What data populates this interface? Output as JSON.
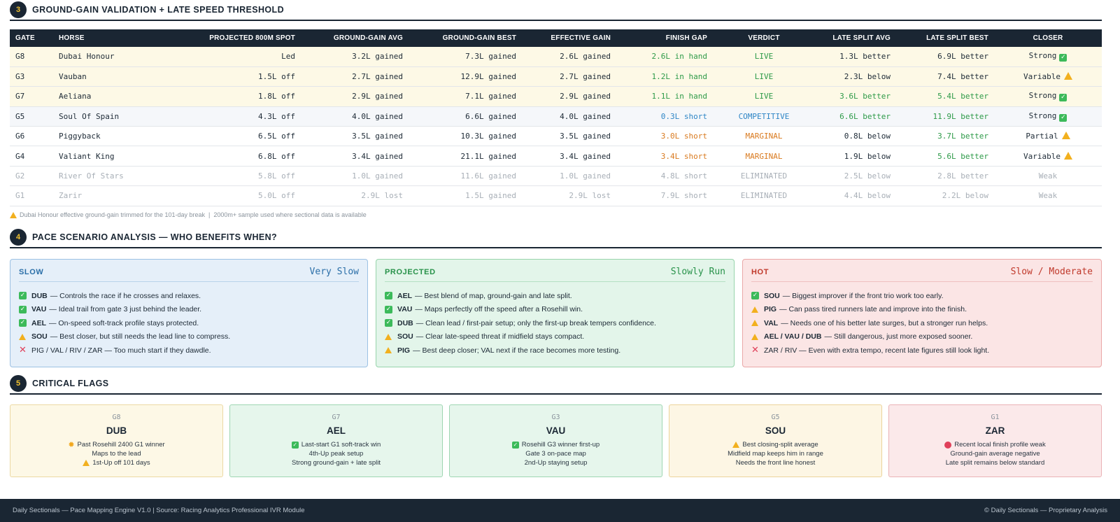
{
  "section3": {
    "number": "3",
    "title": "GROUND-GAIN VALIDATION + LATE SPEED THRESHOLD",
    "columns": [
      "GATE",
      "HORSE",
      "PROJECTED 800M SPOT",
      "GROUND-GAIN AVG",
      "GROUND-GAIN BEST",
      "EFFECTIVE GAIN",
      "FINISH GAP",
      "VERDICT",
      "LATE SPLIT AVG",
      "LATE SPLIT BEST",
      "CLOSER"
    ],
    "rows": [
      {
        "gate": "G8",
        "horse": "Dubai Honour",
        "spot": "Led",
        "gg_avg": "3.2L gained",
        "gg_best": "7.3L gained",
        "eff": "2.6L gained",
        "gap": "2.6L in hand",
        "verdict": "LIVE",
        "ls_avg": "1.3L better",
        "ls_best": "6.9L better",
        "closer": "Strong",
        "closer_icon": "check-icon"
      },
      {
        "gate": "G3",
        "horse": "Vauban",
        "spot": "1.5L off",
        "gg_avg": "2.7L gained",
        "gg_best": "12.9L gained",
        "eff": "2.7L gained",
        "gap": "1.2L in hand",
        "verdict": "LIVE",
        "ls_avg": "2.3L below",
        "ls_best": "7.4L better",
        "closer": "Variable",
        "closer_icon": "warning-icon"
      },
      {
        "gate": "G7",
        "horse": "Aeliana",
        "spot": "1.8L off",
        "gg_avg": "2.9L gained",
        "gg_best": "7.1L gained",
        "eff": "2.9L gained",
        "gap": "1.1L in hand",
        "verdict": "LIVE",
        "ls_avg": "3.6L better",
        "ls_best": "5.4L better",
        "closer": "Strong",
        "closer_icon": "check-icon"
      },
      {
        "gate": "G5",
        "horse": "Soul Of Spain",
        "spot": "4.3L off",
        "gg_avg": "4.0L gained",
        "gg_best": "6.6L gained",
        "eff": "4.0L gained",
        "gap": "0.3L short",
        "verdict": "COMPETITIVE",
        "ls_avg": "6.6L better",
        "ls_best": "11.9L better",
        "closer": "Strong",
        "closer_icon": "check-icon"
      },
      {
        "gate": "G6",
        "horse": "Piggyback",
        "spot": "6.5L off",
        "gg_avg": "3.5L gained",
        "gg_best": "10.3L gained",
        "eff": "3.5L gained",
        "gap": "3.0L short",
        "verdict": "MARGINAL",
        "ls_avg": "0.8L below",
        "ls_best": "3.7L better",
        "closer": "Partial",
        "closer_icon": "warning-icon"
      },
      {
        "gate": "G4",
        "horse": "Valiant King",
        "spot": "6.8L off",
        "gg_avg": "3.4L gained",
        "gg_best": "21.1L gained",
        "eff": "3.4L gained",
        "gap": "3.4L short",
        "verdict": "MARGINAL",
        "ls_avg": "1.9L below",
        "ls_best": "5.6L better",
        "closer": "Variable",
        "closer_icon": "warning-icon"
      },
      {
        "gate": "G2",
        "horse": "River Of Stars",
        "spot": "5.8L off",
        "gg_avg": "1.0L gained",
        "gg_best": "11.6L gained",
        "eff": "1.0L gained",
        "gap": "4.8L short",
        "verdict": "ELIMINATED",
        "ls_avg": "2.5L below",
        "ls_best": "2.8L better",
        "closer": "Weak",
        "closer_icon": ""
      },
      {
        "gate": "G1",
        "horse": "Zarir",
        "spot": "5.0L off",
        "gg_avg": "2.9L lost",
        "gg_best": "1.5L gained",
        "eff": "2.9L lost",
        "gap": "7.9L short",
        "verdict": "ELIMINATED",
        "ls_avg": "4.4L below",
        "ls_best": "2.2L below",
        "closer": "Weak",
        "closer_icon": ""
      }
    ],
    "footnote": "Dubai Honour effective ground-gain trimmed for the 101-day break  |  2000m+ sample used where sectional data is available"
  },
  "section4": {
    "number": "4",
    "title": "PACE SCENARIO ANALYSIS — WHO BENEFITS WHEN?",
    "cards": [
      {
        "label": "SLOW",
        "value": "Very Slow",
        "items": [
          {
            "icon": "check",
            "bold": "DUB",
            "text": "— Controls the race if he crosses and relaxes."
          },
          {
            "icon": "check",
            "bold": "VAU",
            "text": "— Ideal trail from gate 3 just behind the leader."
          },
          {
            "icon": "check",
            "bold": "AEL",
            "text": "— On-speed soft-track profile stays protected."
          },
          {
            "icon": "warn",
            "bold": "SOU",
            "text": "— Best closer, but still needs the lead line to compress."
          },
          {
            "icon": "cross",
            "bold": "",
            "text": "PIG / VAL / RIV / ZAR — Too much start if they dawdle."
          }
        ]
      },
      {
        "label": "PROJECTED",
        "value": "Slowly Run",
        "items": [
          {
            "icon": "check",
            "bold": "AEL",
            "text": "— Best blend of map, ground-gain and late split."
          },
          {
            "icon": "check",
            "bold": "VAU",
            "text": "— Maps perfectly off the speed after a Rosehill win."
          },
          {
            "icon": "check",
            "bold": "DUB",
            "text": "— Clean lead / first-pair setup; only the first-up break tempers confidence."
          },
          {
            "icon": "warn",
            "bold": "SOU",
            "text": "— Clear late-speed threat if midfield stays compact."
          },
          {
            "icon": "warn",
            "bold": "PIG",
            "text": "— Best deep closer; VAL next if the race becomes more testing."
          }
        ]
      },
      {
        "label": "HOT",
        "value": "Slow / Moderate",
        "items": [
          {
            "icon": "check",
            "bold": "SOU",
            "text": "— Biggest improver if the front trio work too early."
          },
          {
            "icon": "warn",
            "bold": "PIG",
            "text": "— Can pass tired runners late and improve into the finish."
          },
          {
            "icon": "warn",
            "bold": "VAL",
            "text": "— Needs one of his better late surges, but a stronger run helps."
          },
          {
            "icon": "warn",
            "bold": "AEL / VAU / DUB",
            "text": "— Still dangerous, just more exposed sooner."
          },
          {
            "icon": "cross",
            "bold": "",
            "text": "ZAR / RIV — Even with extra tempo, recent late figures still look light."
          }
        ]
      }
    ]
  },
  "section5": {
    "number": "5",
    "title": "CRITICAL FLAGS",
    "flags": [
      {
        "gate": "G8",
        "name": "DUB",
        "lines": [
          {
            "icon": "sun",
            "text": "Past Rosehill 2400 G1 winner"
          },
          {
            "icon": "",
            "text": "Maps to the lead"
          },
          {
            "icon": "warn",
            "text": "1st-Up off 101 days"
          }
        ]
      },
      {
        "gate": "G7",
        "name": "AEL",
        "lines": [
          {
            "icon": "check",
            "text": "Last-start G1 soft-track win"
          },
          {
            "icon": "",
            "text": "4th-Up peak setup"
          },
          {
            "icon": "",
            "text": "Strong ground-gain + late split"
          }
        ]
      },
      {
        "gate": "G3",
        "name": "VAU",
        "lines": [
          {
            "icon": "check",
            "text": "Rosehill G3 winner first-up"
          },
          {
            "icon": "",
            "text": "Gate 3 on-pace map"
          },
          {
            "icon": "",
            "text": "2nd-Up staying setup"
          }
        ]
      },
      {
        "gate": "G5",
        "name": "SOU",
        "lines": [
          {
            "icon": "warn",
            "text": "Best closing-split average"
          },
          {
            "icon": "",
            "text": "Midfield map keeps him in range"
          },
          {
            "icon": "",
            "text": "Needs the front line honest"
          }
        ]
      },
      {
        "gate": "G1",
        "name": "ZAR",
        "lines": [
          {
            "icon": "dot",
            "text": "Recent local finish profile weak"
          },
          {
            "icon": "",
            "text": "Ground-gain average negative"
          },
          {
            "icon": "",
            "text": "Late split remains below standard"
          }
        ]
      }
    ]
  },
  "footer": {
    "left": "Daily Sectionals — Pace Mapping Engine V1.0 | Source: Racing Analytics Professional IVR Module",
    "right": "© Daily Sectionals — Proprietary Analysis"
  }
}
